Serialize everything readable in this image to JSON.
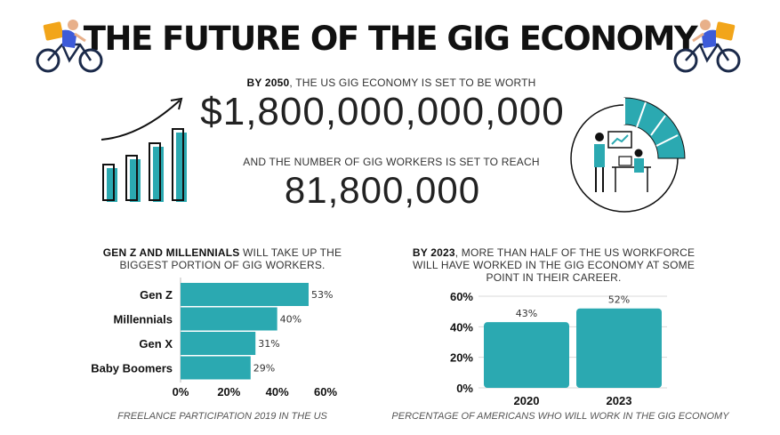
{
  "header": {
    "title": "THE FUTURE OF THE GIG ECONOMY",
    "icons": [
      "delivery-cyclist-icon",
      "delivery-cyclist-icon"
    ]
  },
  "stats": {
    "line1_prefix": "BY 2050",
    "line1_rest": ", THE US GIG ECONOMY IS SET TO BE WORTH",
    "value1": "$1,800,000,000,000",
    "line2": "AND THE NUMBER OF GIG WORKERS IS SET TO REACH",
    "value2": "81,800,000"
  },
  "colors": {
    "accent": "#2ba9b1",
    "text": "#222222"
  },
  "left_panel": {
    "caption_bold": "GEN Z AND MILLENNIALS",
    "caption_rest": " WILL TAKE UP THE BIGGEST PORTION OF GIG WORKERS.",
    "footnote": "FREELANCE PARTICIPATION 2019 IN THE US"
  },
  "right_panel": {
    "caption_bold": "BY 2023",
    "caption_rest": ", MORE THAN HALF OF THE US WORKFORCE WILL HAVE WORKED IN THE GIG ECONOMY AT SOME POINT IN THEIR CAREER.",
    "footnote": "PERCENTAGE OF AMERICANS WHO WILL WORK IN THE GIG ECONOMY"
  },
  "chart_data": [
    {
      "type": "bar",
      "orientation": "horizontal",
      "categories": [
        "Gen Z",
        "Millennials",
        "Gen X",
        "Baby Boomers"
      ],
      "values": [
        53,
        40,
        31,
        29
      ],
      "value_labels": [
        "53%",
        "40%",
        "31%",
        "29%"
      ],
      "xlim": [
        0,
        60
      ],
      "ticks": [
        0,
        20,
        40,
        60
      ],
      "tick_labels": [
        "0%",
        "20%",
        "40%",
        "60%"
      ],
      "color": "#2ba9b1",
      "grid": false
    },
    {
      "type": "bar",
      "orientation": "vertical",
      "categories": [
        "2020",
        "2023"
      ],
      "values": [
        43,
        52
      ],
      "value_labels": [
        "43%",
        "52%"
      ],
      "ylim": [
        0,
        60
      ],
      "ticks": [
        0,
        20,
        40,
        60
      ],
      "tick_labels": [
        "0%",
        "20%",
        "40%",
        "60%"
      ],
      "color": "#2ba9b1",
      "grid": true
    }
  ]
}
